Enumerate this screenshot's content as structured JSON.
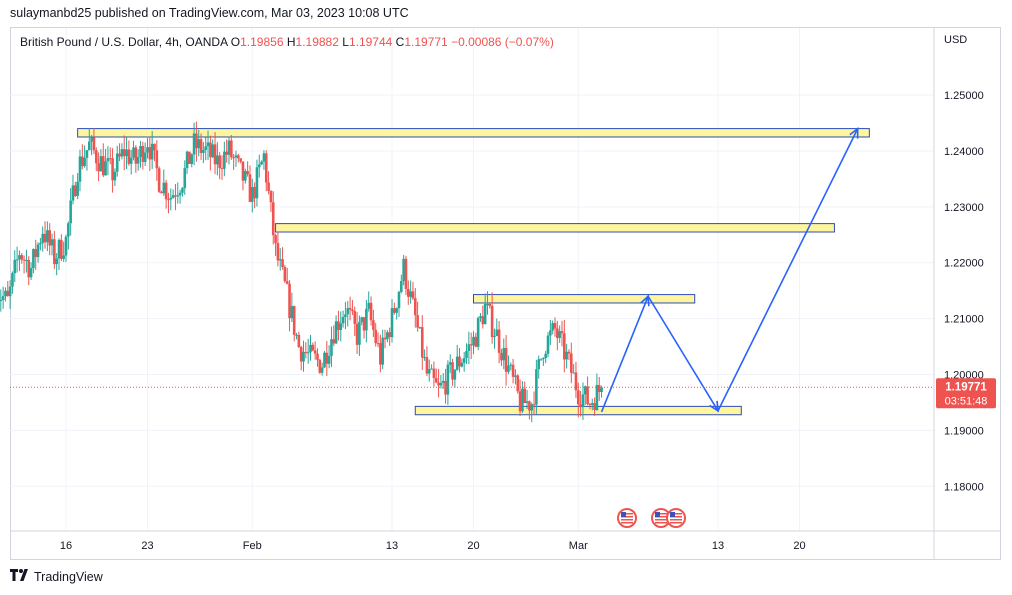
{
  "header": {
    "published_line": "sulaymanbd25 published on TradingView.com, Mar 03, 2023 10:08 UTC"
  },
  "legend": {
    "symbol": "British Pound / U.S. Dollar, 4h, OANDA",
    "open_label": "O",
    "open": "1.19856",
    "high_label": "H",
    "high": "1.19882",
    "low_label": "L",
    "low": "1.19744",
    "close_label": "C",
    "close": "1.19771",
    "change": "−0.00086 (−0.07%)"
  },
  "price_axis": {
    "currency": "USD"
  },
  "last_price": {
    "price": "1.19771",
    "countdown": "03:51:48",
    "color": "#ef5350"
  },
  "footer": {
    "brand": "TradingView"
  },
  "colors": {
    "up": "#26a69a",
    "down": "#ef5350",
    "zone_fill": "#fff59d",
    "zone_border": "#2a4db8",
    "projection": "#2962ff",
    "grid": "#f0f3fa"
  },
  "chart_data": {
    "type": "candlestick",
    "symbol": "GBPUSD",
    "timeframe": "4h",
    "ylim": [
      1.172,
      1.262
    ],
    "y_ticks": [
      "1.25000",
      "1.24000",
      "1.23000",
      "1.22000",
      "1.21000",
      "1.20000",
      "1.19000",
      "1.18000"
    ],
    "x_ticks": [
      "16",
      "23",
      "Feb",
      "13",
      "20",
      "Mar",
      "13",
      "20"
    ],
    "price_path": [
      [
        "Jan 10",
        1.215
      ],
      [
        "Jan 11",
        1.213
      ],
      [
        "Jan 12",
        1.222
      ],
      [
        "Jan 13",
        1.219
      ],
      [
        "Jan 14",
        1.226
      ],
      [
        "Jan 15",
        1.221
      ],
      [
        "Jan 16",
        1.224
      ],
      [
        "Jan 17",
        1.237
      ],
      [
        "Jan 18",
        1.241
      ],
      [
        "Jan 19",
        1.238
      ],
      [
        "Jan 20",
        1.236
      ],
      [
        "Jan 21",
        1.24
      ],
      [
        "Jan 22",
        1.238
      ],
      [
        "Jan 23",
        1.242
      ],
      [
        "Jan 24",
        1.235
      ],
      [
        "Jan 25",
        1.232
      ],
      [
        "Jan 26",
        1.235
      ],
      [
        "Jan 27",
        1.241
      ],
      [
        "Jan 28",
        1.24
      ],
      [
        "Jan 29",
        1.238
      ],
      [
        "Jan 30",
        1.24
      ],
      [
        "Jan 31",
        1.236
      ],
      [
        "Feb 1",
        1.232
      ],
      [
        "Feb 2",
        1.239
      ],
      [
        "Feb 3",
        1.222
      ],
      [
        "Feb 4",
        1.214
      ],
      [
        "Feb 5",
        1.205
      ],
      [
        "Feb 6",
        1.203
      ],
      [
        "Feb 7",
        1.202
      ],
      [
        "Feb 8",
        1.208
      ],
      [
        "Feb 9",
        1.212
      ],
      [
        "Feb 10",
        1.207
      ],
      [
        "Feb 11",
        1.211
      ],
      [
        "Feb 12",
        1.203
      ],
      [
        "Feb 13",
        1.21
      ],
      [
        "Feb 14",
        1.219
      ],
      [
        "Feb 15",
        1.21
      ],
      [
        "Feb 16",
        1.2
      ],
      [
        "Feb 17",
        1.197
      ],
      [
        "Feb 18",
        1.2
      ],
      [
        "Feb 19",
        1.203
      ],
      [
        "Feb 20",
        1.206
      ],
      [
        "Feb 21",
        1.212
      ],
      [
        "Feb 22",
        1.207
      ],
      [
        "Feb 23",
        1.201
      ],
      [
        "Feb 24",
        1.195
      ],
      [
        "Feb 25",
        1.195
      ],
      [
        "Feb 26",
        1.205
      ],
      [
        "Feb 27",
        1.208
      ],
      [
        "Feb 28",
        1.203
      ],
      [
        "Mar 1",
        1.197
      ],
      [
        "Mar 2",
        1.195
      ],
      [
        "Mar 3",
        1.1977
      ]
    ],
    "zones": [
      {
        "from": "Jan 17",
        "to": "Mar 26",
        "low": 1.2425,
        "high": 1.244
      },
      {
        "from": "Feb 3",
        "to": "Mar 23",
        "low": 1.2255,
        "high": 1.227
      },
      {
        "from": "Feb 20",
        "to": "Mar 11",
        "low": 1.2128,
        "high": 1.2143
      },
      {
        "from": "Feb 15",
        "to": "Mar 15",
        "low": 1.1928,
        "high": 1.1943
      }
    ],
    "projection": [
      [
        "Mar 3",
        1.1933
      ],
      [
        "Mar 7",
        1.214
      ],
      [
        "Mar 13",
        1.1935
      ],
      [
        "Mar 25",
        1.244
      ]
    ],
    "last_close": 1.19771,
    "event_markers": 3
  }
}
